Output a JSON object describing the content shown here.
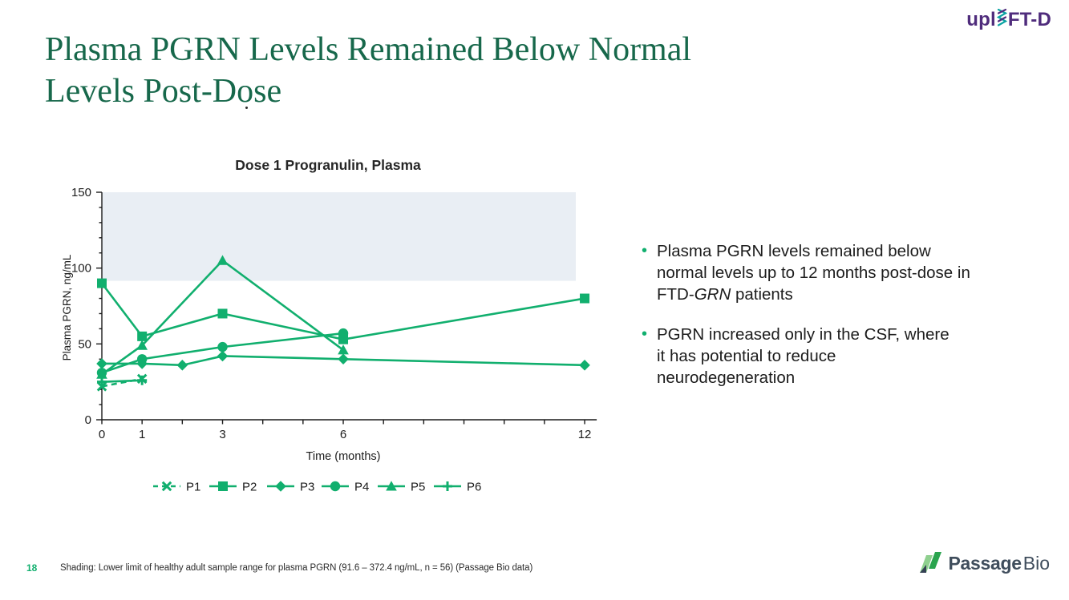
{
  "slide": {
    "title_line1": "Plasma PGRN Levels Remained Below Normal",
    "title_line2": "Levels Post-Dose",
    "title_color": "#17684B"
  },
  "uplift_logo": {
    "pre": "upl",
    "post": "FT-D",
    "color": "#4F2C7C",
    "helix_teal": "#0BA3A3"
  },
  "bullets": [
    {
      "segments": [
        {
          "t": "Plasma PGRN levels remained below",
          "i": false,
          "br": true
        },
        {
          "t": "normal levels up to 12 months post-dose in",
          "i": false,
          "br": true
        },
        {
          "t": "FTD-",
          "i": false,
          "br": false
        },
        {
          "t": "GRN",
          "i": true,
          "br": false
        },
        {
          "t": " patients",
          "i": false,
          "br": false
        }
      ]
    },
    {
      "segments": [
        {
          "t": "PGRN increased only in the CSF, where",
          "i": false,
          "br": true
        },
        {
          "t": "it has potential to reduce",
          "i": false,
          "br": true
        },
        {
          "t": "neurodegeneration",
          "i": false,
          "br": false
        }
      ]
    }
  ],
  "footer": {
    "page": "18",
    "note": "Shading: Lower limit of healthy adult sample range for plasma PGRN (91.6 – 372.4 ng/mL, n = 56) (Passage Bio data)"
  },
  "brand": {
    "bold": "Passage",
    "light": "Bio",
    "icon_light": "#8FD08F",
    "icon_dark": "#2AA44E",
    "icon_navy": "#344154",
    "text_color": "#3F4D5C"
  },
  "chart_data": {
    "type": "line",
    "title": "Dose 1 Progranulin, Plasma",
    "xlabel": "Time (months)",
    "ylabel": "Plasma PGRN, ng/mL",
    "xlim": [
      0,
      12.3
    ],
    "ylim": [
      0,
      150
    ],
    "x_ticks": [
      0,
      1,
      2,
      3,
      4,
      5,
      6,
      7,
      8,
      9,
      10,
      11,
      12
    ],
    "x_tick_labels": [
      0,
      1,
      3,
      6,
      12
    ],
    "y_tick_labels": [
      0,
      50,
      100,
      150
    ],
    "y_minor_step": 10,
    "grid": false,
    "legend_position": "bottom",
    "color": "#11AF6E",
    "text_color": "#1C1C1C",
    "shaded_band": {
      "from": 91.6,
      "to": 150,
      "color": "#E9EEF4",
      "meaning": "Lower limit of healthy adult sample range for plasma PGRN (91.6 - 372.4 ng/mL, n = 56)"
    },
    "series": [
      {
        "name": "P1",
        "marker": "x",
        "dashed": true,
        "points": [
          [
            0,
            22
          ],
          [
            1,
            27
          ]
        ]
      },
      {
        "name": "P2",
        "marker": "square",
        "dashed": false,
        "points": [
          [
            0,
            90
          ],
          [
            1,
            55
          ],
          [
            3,
            70
          ],
          [
            6,
            53
          ],
          [
            12,
            80
          ]
        ]
      },
      {
        "name": "P3",
        "marker": "diamond",
        "dashed": false,
        "points": [
          [
            0,
            37
          ],
          [
            1,
            37
          ],
          [
            2,
            36
          ],
          [
            3,
            42
          ],
          [
            6,
            40
          ],
          [
            12,
            36
          ]
        ]
      },
      {
        "name": "P4",
        "marker": "circle",
        "dashed": false,
        "points": [
          [
            0,
            31
          ],
          [
            1,
            40
          ],
          [
            3,
            48
          ],
          [
            6,
            57
          ]
        ]
      },
      {
        "name": "P5",
        "marker": "triangle",
        "dashed": false,
        "points": [
          [
            0,
            30
          ],
          [
            1,
            49
          ],
          [
            3,
            105
          ],
          [
            6,
            46
          ]
        ]
      },
      {
        "name": "P6",
        "marker": "plus",
        "dashed": false,
        "points": [
          [
            0,
            25
          ],
          [
            1,
            26
          ]
        ]
      }
    ]
  }
}
